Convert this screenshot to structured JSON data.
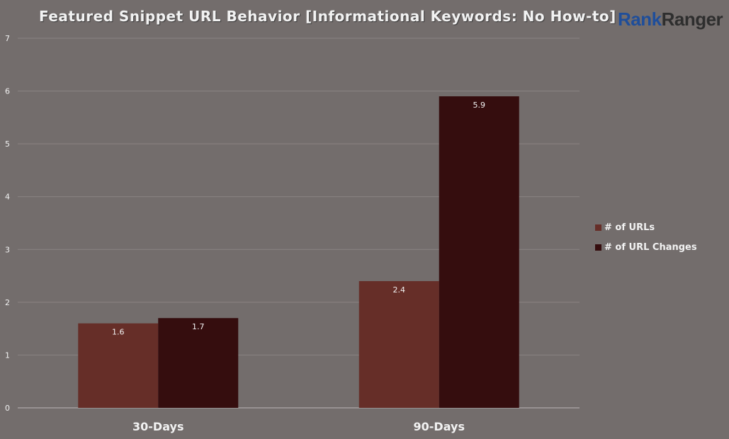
{
  "title": "Featured Snippet URL Behavior [Informational Keywords: No How-to]",
  "logo": {
    "part1": "Rank",
    "part2": "Ranger"
  },
  "colors": {
    "background": "#736d6c",
    "grid": "#8a8483",
    "axis_text": "#f2f2f2",
    "logo_blue": "#1f4e9a",
    "logo_dark": "#2e2e2e"
  },
  "chart_data": {
    "type": "bar",
    "title": "Featured Snippet URL Behavior [Informational Keywords: No How-to]",
    "categories": [
      "30-Days",
      "90-Days"
    ],
    "series": [
      {
        "name": "# of URLs",
        "values": [
          1.6,
          2.4
        ],
        "color": "#662e28"
      },
      {
        "name": "# of URL Changes",
        "values": [
          1.7,
          5.9
        ],
        "color": "#350d0e"
      }
    ],
    "data_labels": [
      [
        "1.6",
        "2.4"
      ],
      [
        "1.7",
        "5.9"
      ]
    ],
    "ylim": [
      0,
      7
    ],
    "yticks": [
      "0",
      "1",
      "2",
      "3",
      "4",
      "5",
      "6",
      "7"
    ],
    "grid": true,
    "legend_position": "right"
  }
}
